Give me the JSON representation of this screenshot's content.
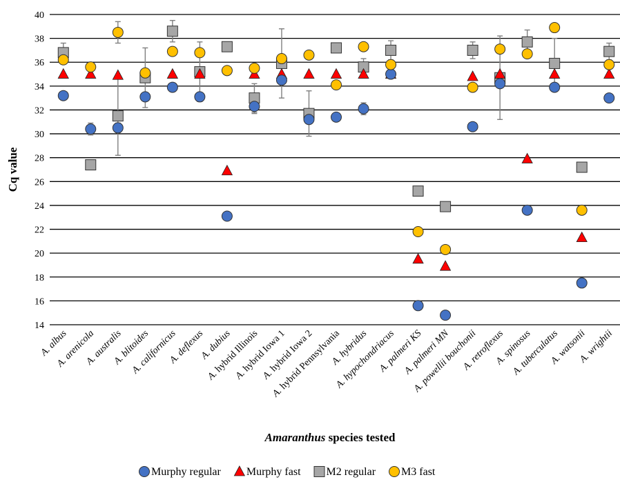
{
  "chart_data": {
    "type": "scatter",
    "xlabel": {
      "italic": "Amaranthus",
      "rest": " species tested"
    },
    "ylabel": "Cq value",
    "ylim": [
      14,
      40
    ],
    "yticks": [
      14,
      16,
      18,
      20,
      22,
      24,
      26,
      28,
      30,
      32,
      34,
      36,
      38,
      40
    ],
    "grid": "horizontal",
    "legend_position": "bottom",
    "categories": [
      {
        "prefix": "A. ",
        "name": "albus",
        "suffix": ""
      },
      {
        "prefix": "A. ",
        "name": "arenicola",
        "suffix": ""
      },
      {
        "prefix": "A. ",
        "name": "australis",
        "suffix": ""
      },
      {
        "prefix": "A. ",
        "name": "blitoides",
        "suffix": ""
      },
      {
        "prefix": "A. ",
        "name": "californicus",
        "suffix": ""
      },
      {
        "prefix": "A. ",
        "name": "deflexus",
        "suffix": ""
      },
      {
        "prefix": "A. ",
        "name": "dubius",
        "suffix": ""
      },
      {
        "prefix": "A. ",
        "name": "",
        "suffix": "hybrid Illinois"
      },
      {
        "prefix": "A. ",
        "name": "",
        "suffix": "hybrid Iowa 1"
      },
      {
        "prefix": "A. ",
        "name": "",
        "suffix": "hybrid Iowa 2"
      },
      {
        "prefix": "A. ",
        "name": "",
        "suffix": "hybrid Pennsylvania"
      },
      {
        "prefix": "A. ",
        "name": "hybridus",
        "suffix": ""
      },
      {
        "prefix": "A. ",
        "name": "hypochondriacus",
        "suffix": ""
      },
      {
        "prefix": "A. ",
        "name": "palmeri KS",
        "suffix": ""
      },
      {
        "prefix": "A. ",
        "name": "palmeri MN",
        "suffix": ""
      },
      {
        "prefix": "A. ",
        "name": "powellii bouchonii",
        "suffix": ""
      },
      {
        "prefix": "A. ",
        "name": "retroflexus",
        "suffix": ""
      },
      {
        "prefix": "A. ",
        "name": "spinosus",
        "suffix": ""
      },
      {
        "prefix": "A. ",
        "name": "tuberculatus",
        "suffix": ""
      },
      {
        "prefix": "A. ",
        "name": "watsonii",
        "suffix": ""
      },
      {
        "prefix": "A. ",
        "name": "wrightii",
        "suffix": ""
      }
    ],
    "series": [
      {
        "name": "Murphy regular",
        "marker": "circle",
        "color": "#4472c4",
        "values": [
          33.2,
          30.4,
          30.5,
          33.1,
          33.9,
          33.1,
          23.1,
          32.3,
          34.5,
          31.2,
          31.4,
          32.1,
          35.0,
          15.6,
          14.8,
          30.6,
          34.2,
          23.6,
          33.9,
          17.5,
          33.0
        ],
        "errors": [
          null,
          0.5,
          0.4,
          null,
          null,
          null,
          null,
          0.6,
          null,
          null,
          null,
          0.5,
          null,
          null,
          null,
          null,
          null,
          null,
          null,
          null,
          null
        ]
      },
      {
        "name": "Murphy fast",
        "marker": "triangle",
        "color": "#ff0000",
        "values": [
          35.0,
          35.0,
          34.9,
          null,
          35.0,
          35.0,
          26.9,
          35.0,
          35.0,
          35.0,
          35.0,
          35.0,
          35.0,
          19.5,
          18.9,
          34.8,
          35.0,
          27.9,
          35.0,
          21.3,
          35.0
        ],
        "errors": [
          null,
          null,
          null,
          null,
          null,
          null,
          null,
          null,
          null,
          null,
          null,
          null,
          null,
          null,
          null,
          null,
          null,
          null,
          null,
          null,
          null
        ]
      },
      {
        "name": "M2 regular",
        "marker": "square",
        "color": "#a6a6a6",
        "values": [
          36.8,
          27.4,
          31.5,
          34.7,
          38.6,
          35.2,
          37.3,
          33.0,
          35.9,
          31.7,
          37.2,
          35.6,
          37.0,
          25.2,
          23.9,
          37.0,
          34.7,
          37.7,
          35.9,
          27.2,
          36.9
        ],
        "errors": [
          0.8,
          null,
          3.3,
          2.5,
          0.9,
          2.5,
          null,
          1.2,
          2.9,
          1.9,
          null,
          0.7,
          0.8,
          null,
          null,
          0.7,
          3.5,
          1.0,
          2.1,
          null,
          0.7
        ]
      },
      {
        "name": "M3 fast",
        "marker": "circle",
        "color": "#ffc000",
        "values": [
          36.2,
          35.6,
          38.5,
          35.1,
          36.9,
          36.8,
          35.3,
          35.5,
          36.3,
          36.6,
          34.1,
          37.3,
          35.8,
          21.8,
          20.3,
          33.9,
          37.1,
          36.7,
          38.9,
          23.6,
          35.8
        ],
        "errors": [
          null,
          null,
          0.9,
          null,
          null,
          null,
          null,
          null,
          null,
          null,
          null,
          null,
          null,
          null,
          null,
          null,
          null,
          null,
          null,
          null,
          null
        ]
      }
    ]
  }
}
